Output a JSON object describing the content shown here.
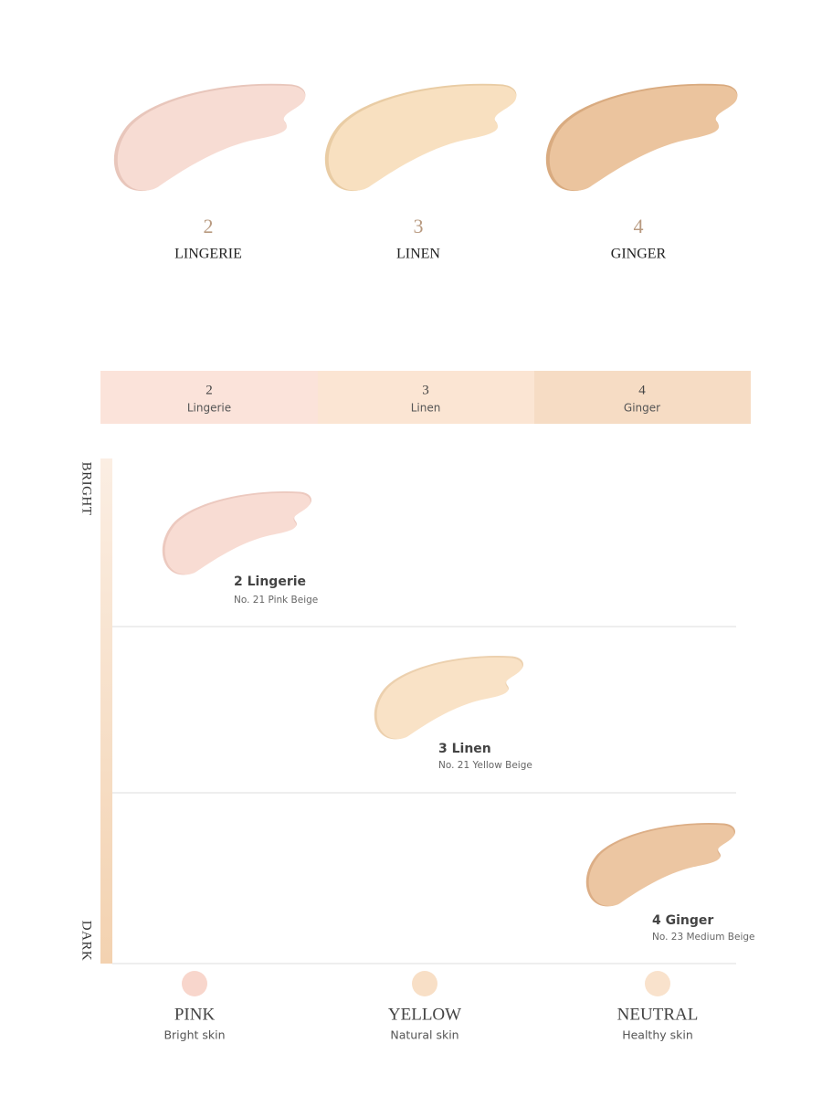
{
  "swatches": [
    {
      "number": "2",
      "name": "LINGERIE"
    },
    {
      "number": "3",
      "name": "LINEN"
    },
    {
      "number": "4",
      "name": "GINGER"
    }
  ],
  "shade_bar": [
    {
      "number": "2",
      "name": "Lingerie"
    },
    {
      "number": "3",
      "name": "Linen"
    },
    {
      "number": "4",
      "name": "Ginger"
    }
  ],
  "axis": {
    "top": "BRIGHT",
    "bottom": "DARK"
  },
  "placements": [
    {
      "title": "2 Lingerie",
      "subtitle": "No. 21 Pink Beige"
    },
    {
      "title": "3 Linen",
      "subtitle": "No. 21 Yellow Beige"
    },
    {
      "title": "4 Ginger",
      "subtitle": "No. 23 Medium Beige"
    }
  ],
  "undertones": [
    {
      "name": "PINK",
      "description": "Bright skin"
    },
    {
      "name": "YELLOW",
      "description": "Natural skin"
    },
    {
      "name": "NEUTRAL",
      "description": "Healthy skin"
    }
  ]
}
